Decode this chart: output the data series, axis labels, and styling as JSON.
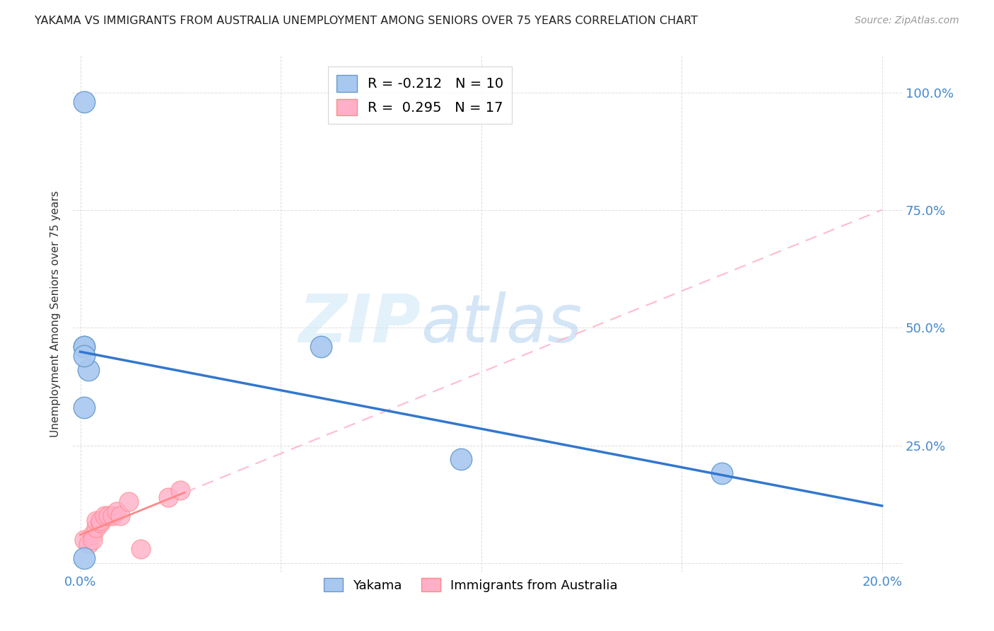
{
  "title": "YAKAMA VS IMMIGRANTS FROM AUSTRALIA UNEMPLOYMENT AMONG SENIORS OVER 75 YEARS CORRELATION CHART",
  "source": "Source: ZipAtlas.com",
  "ylabel": "Unemployment Among Seniors over 75 years",
  "xlim": [
    -0.002,
    0.205
  ],
  "ylim": [
    -0.02,
    1.08
  ],
  "x_tick_positions": [
    0.0,
    0.05,
    0.1,
    0.15,
    0.2
  ],
  "x_tick_labels": [
    "0.0%",
    "",
    "",
    "",
    "20.0%"
  ],
  "y_tick_positions": [
    0.0,
    0.25,
    0.5,
    0.75,
    1.0
  ],
  "y_right_labels": [
    "",
    "25.0%",
    "50.0%",
    "75.0%",
    "100.0%"
  ],
  "yakama_x": [
    0.001,
    0.001,
    0.002,
    0.001,
    0.001,
    0.06,
    0.095,
    0.16,
    0.001,
    0.001
  ],
  "yakama_y": [
    0.33,
    0.46,
    0.41,
    0.98,
    0.46,
    0.46,
    0.22,
    0.19,
    0.44,
    0.01
  ],
  "australia_x": [
    0.001,
    0.002,
    0.003,
    0.003,
    0.004,
    0.004,
    0.005,
    0.005,
    0.006,
    0.007,
    0.008,
    0.009,
    0.01,
    0.012,
    0.015,
    0.022,
    0.025
  ],
  "australia_y": [
    0.05,
    0.04,
    0.06,
    0.05,
    0.075,
    0.09,
    0.085,
    0.09,
    0.1,
    0.1,
    0.1,
    0.11,
    0.1,
    0.13,
    0.03,
    0.14,
    0.155
  ],
  "yakama_color": "#a8c8f0",
  "yakama_edge_color": "#6699cc",
  "australia_color": "#ffb0c8",
  "australia_edge_color": "#ff8888",
  "trend_yakama_color": "#3377cc",
  "trend_australia_solid_color": "#ff8888",
  "trend_australia_dash_color": "#ffbbcc",
  "legend_R_yakama": "R = -0.212",
  "legend_N_yakama": "N = 10",
  "legend_R_australia": "R =  0.295",
  "legend_N_australia": "N = 17",
  "watermark": "ZIPatlas",
  "watermark_zip_color": "#c8dff8",
  "watermark_atlas_color": "#99bbdd",
  "background_color": "#ffffff",
  "grid_color": "#dddddd"
}
